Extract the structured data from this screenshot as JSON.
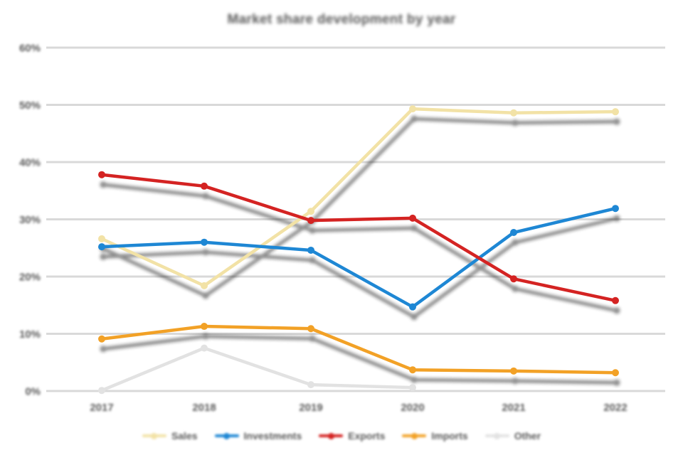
{
  "title": "Market share development by year",
  "chart_data": {
    "type": "line",
    "x": [
      "2017",
      "2018",
      "2019",
      "2020",
      "2021",
      "2022"
    ],
    "y_ticks": [
      "60%",
      "50%",
      "40%",
      "30%",
      "20%",
      "10%",
      "0%"
    ],
    "ylim": [
      0,
      60
    ],
    "grid": true,
    "legend_position": "bottom",
    "series": [
      {
        "name": "Sales",
        "color": "#f2e2a6",
        "shadow": true,
        "values": [
          26.6,
          18.4,
          31.4,
          49.3,
          48.6,
          48.8
        ]
      },
      {
        "name": "Investments",
        "color": "#1e87d4",
        "shadow": true,
        "values": [
          25.2,
          26.0,
          24.6,
          14.7,
          27.7,
          31.9
        ]
      },
      {
        "name": "Exports",
        "color": "#d42322",
        "shadow": true,
        "values": [
          37.8,
          35.8,
          29.8,
          30.2,
          19.6,
          15.8
        ]
      },
      {
        "name": "Imports",
        "color": "#f2a126",
        "shadow": true,
        "values": [
          9.1,
          11.3,
          10.9,
          3.7,
          3.5,
          3.2
        ]
      },
      {
        "name": "Other",
        "color": "#e2e2e2",
        "shadow": false,
        "values": [
          0.1,
          7.5,
          1.1,
          0.6,
          null,
          null
        ]
      }
    ]
  },
  "colors": {
    "background": "#ffffff",
    "gridline": "#d9d9d9",
    "text": "#595959",
    "line_shadow": "#161616"
  }
}
